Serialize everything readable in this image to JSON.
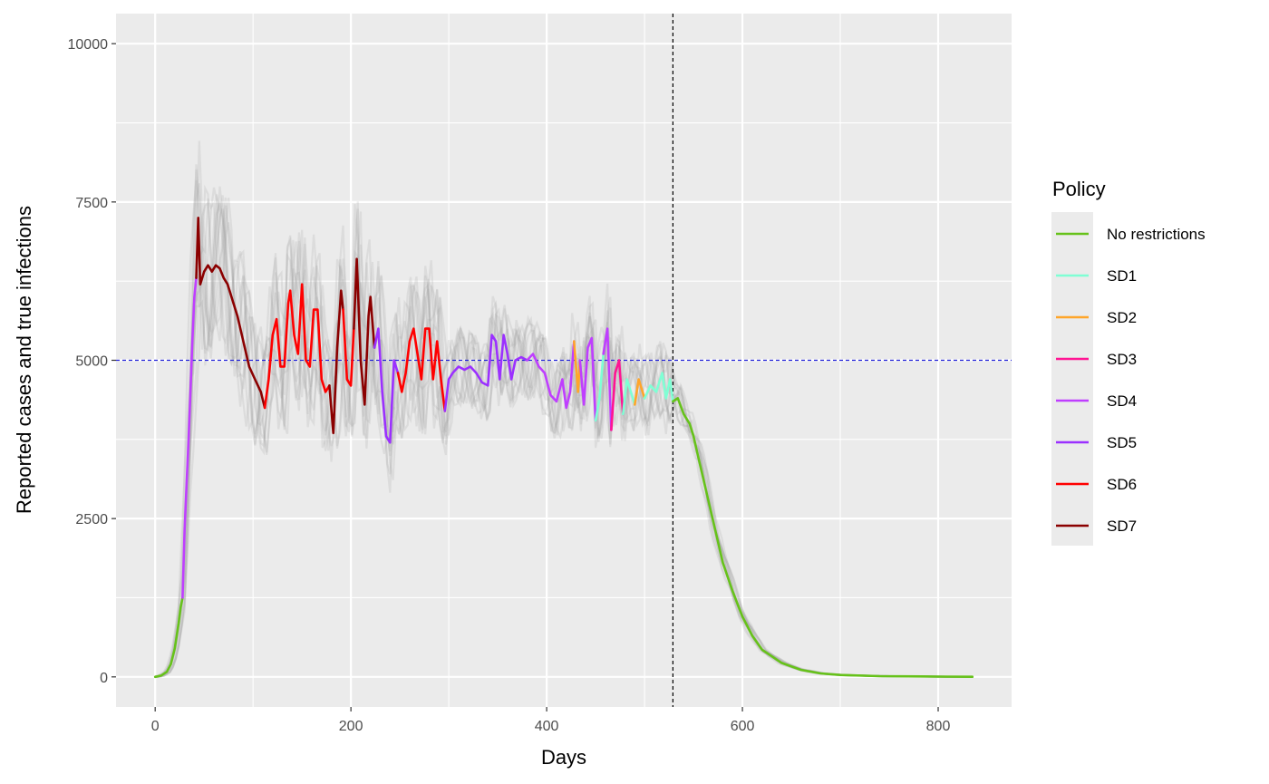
{
  "chart_data": {
    "type": "line",
    "xlabel": "Days",
    "ylabel": "Reported cases and true infections",
    "xlim": [
      -40,
      875
    ],
    "ylim": [
      -475,
      10475
    ],
    "x_ticks": [
      0,
      200,
      400,
      600,
      800
    ],
    "y_ticks": [
      0,
      2500,
      5000,
      7500,
      10000
    ],
    "grid": true,
    "legend": {
      "title": "Policy",
      "position": "right"
    },
    "reference_lines": [
      {
        "orientation": "horizontal",
        "value": 5000,
        "color": "#1f1fd6",
        "style": "dashed"
      },
      {
        "orientation": "vertical",
        "value": 529,
        "color": "#000000",
        "style": "dashed"
      }
    ],
    "series": [
      {
        "name": "No restrictions",
        "color": "#66c21a"
      },
      {
        "name": "SD1",
        "color": "#7fffd4"
      },
      {
        "name": "SD2",
        "color": "#ffa52a"
      },
      {
        "name": "SD3",
        "color": "#ff1493"
      },
      {
        "name": "SD4",
        "color": "#bf3eff"
      },
      {
        "name": "SD5",
        "color": "#9b30ff"
      },
      {
        "name": "SD6",
        "color": "#ff0000"
      },
      {
        "name": "SD7",
        "color": "#8b0000"
      }
    ],
    "segments": [
      {
        "policy": "No restrictions",
        "points": [
          [
            0,
            0
          ],
          [
            6,
            20
          ],
          [
            12,
            80
          ],
          [
            16,
            200
          ],
          [
            20,
            450
          ],
          [
            24,
            850
          ],
          [
            26,
            1100
          ],
          [
            28,
            1250
          ]
        ]
      },
      {
        "policy": "SD4",
        "points": [
          [
            28,
            1250
          ],
          [
            30,
            2300
          ],
          [
            32,
            3000
          ],
          [
            34,
            3700
          ],
          [
            36,
            4500
          ],
          [
            38,
            5300
          ],
          [
            40,
            6000
          ],
          [
            42,
            6300
          ]
        ]
      },
      {
        "policy": "SD7",
        "points": [
          [
            42,
            6300
          ],
          [
            44,
            7250
          ],
          [
            46,
            6200
          ],
          [
            50,
            6400
          ],
          [
            54,
            6500
          ],
          [
            58,
            6400
          ],
          [
            62,
            6500
          ],
          [
            66,
            6450
          ],
          [
            70,
            6300
          ],
          [
            74,
            6200
          ],
          [
            78,
            6000
          ],
          [
            84,
            5700
          ],
          [
            90,
            5300
          ],
          [
            96,
            4900
          ],
          [
            102,
            4700
          ],
          [
            108,
            4500
          ],
          [
            112,
            4250
          ]
        ]
      },
      {
        "policy": "SD6",
        "points": [
          [
            112,
            4250
          ],
          [
            116,
            4700
          ],
          [
            120,
            5400
          ],
          [
            124,
            5650
          ],
          [
            128,
            4900
          ],
          [
            132,
            4900
          ],
          [
            136,
            5900
          ],
          [
            138,
            6100
          ],
          [
            142,
            5400
          ],
          [
            146,
            5100
          ],
          [
            150,
            6200
          ],
          [
            154,
            5000
          ],
          [
            158,
            4900
          ],
          [
            162,
            5800
          ],
          [
            166,
            5800
          ],
          [
            170,
            4700
          ],
          [
            174,
            4500
          ],
          [
            178,
            4600
          ]
        ]
      },
      {
        "policy": "SD7",
        "points": [
          [
            178,
            4600
          ],
          [
            182,
            3850
          ],
          [
            186,
            5200
          ],
          [
            190,
            6100
          ],
          [
            192,
            5800
          ]
        ]
      },
      {
        "policy": "SD6",
        "points": [
          [
            192,
            5800
          ],
          [
            196,
            4700
          ],
          [
            200,
            4600
          ],
          [
            203,
            5500
          ]
        ]
      },
      {
        "policy": "SD7",
        "points": [
          [
            203,
            5500
          ],
          [
            206,
            6600
          ],
          [
            210,
            5000
          ],
          [
            214,
            4300
          ],
          [
            218,
            5700
          ],
          [
            220,
            6000
          ],
          [
            224,
            5200
          ]
        ]
      },
      {
        "policy": "SD5",
        "points": [
          [
            224,
            5200
          ],
          [
            228,
            5500
          ],
          [
            232,
            4500
          ],
          [
            236,
            3800
          ],
          [
            240,
            3700
          ],
          [
            244,
            5000
          ],
          [
            248,
            4800
          ]
        ]
      },
      {
        "policy": "SD6",
        "points": [
          [
            248,
            4800
          ],
          [
            252,
            4500
          ],
          [
            256,
            4800
          ],
          [
            260,
            5300
          ],
          [
            264,
            5500
          ],
          [
            268,
            5100
          ],
          [
            272,
            4700
          ],
          [
            276,
            5500
          ],
          [
            280,
            5500
          ],
          [
            284,
            4700
          ],
          [
            288,
            5300
          ],
          [
            292,
            4700
          ],
          [
            296,
            4200
          ]
        ]
      },
      {
        "policy": "SD5",
        "points": [
          [
            296,
            4200
          ],
          [
            300,
            4700
          ],
          [
            304,
            4800
          ],
          [
            310,
            4900
          ],
          [
            316,
            4850
          ],
          [
            322,
            4900
          ],
          [
            328,
            4800
          ],
          [
            334,
            4650
          ],
          [
            340,
            4600
          ],
          [
            344,
            5400
          ],
          [
            348,
            5300
          ],
          [
            352,
            4700
          ],
          [
            356,
            5400
          ],
          [
            360,
            5100
          ],
          [
            364,
            4700
          ],
          [
            368,
            5000
          ],
          [
            374,
            5050
          ],
          [
            380,
            5000
          ]
        ]
      },
      {
        "policy": "SD4",
        "points": [
          [
            380,
            5000
          ],
          [
            386,
            5100
          ],
          [
            392,
            4900
          ],
          [
            398,
            4800
          ],
          [
            404,
            4450
          ],
          [
            410,
            4350
          ],
          [
            416,
            4700
          ],
          [
            420,
            4250
          ],
          [
            424,
            4500
          ],
          [
            428,
            5300
          ]
        ]
      },
      {
        "policy": "SD2",
        "points": [
          [
            428,
            5300
          ],
          [
            432,
            4500
          ],
          [
            434,
            5000
          ]
        ]
      },
      {
        "policy": "SD4",
        "points": [
          [
            434,
            5000
          ],
          [
            438,
            4300
          ],
          [
            442,
            5200
          ],
          [
            446,
            5350
          ],
          [
            450,
            4050
          ]
        ]
      },
      {
        "policy": "SD1",
        "points": [
          [
            450,
            4050
          ],
          [
            454,
            4400
          ],
          [
            458,
            5100
          ]
        ]
      },
      {
        "policy": "SD4",
        "points": [
          [
            458,
            5100
          ],
          [
            462,
            5500
          ],
          [
            466,
            3900
          ]
        ]
      },
      {
        "policy": "SD3",
        "points": [
          [
            466,
            3900
          ],
          [
            470,
            4800
          ],
          [
            474,
            5000
          ],
          [
            478,
            4150
          ]
        ]
      },
      {
        "policy": "SD1",
        "points": [
          [
            478,
            4150
          ],
          [
            482,
            4700
          ],
          [
            486,
            4500
          ],
          [
            490,
            4300
          ]
        ]
      },
      {
        "policy": "SD2",
        "points": [
          [
            490,
            4300
          ],
          [
            494,
            4700
          ],
          [
            500,
            4400
          ]
        ]
      },
      {
        "policy": "SD1",
        "points": [
          [
            500,
            4400
          ],
          [
            506,
            4600
          ],
          [
            512,
            4500
          ],
          [
            518,
            4800
          ],
          [
            522,
            4400
          ],
          [
            526,
            4700
          ],
          [
            529,
            4350
          ]
        ]
      },
      {
        "policy": "No restrictions",
        "points": [
          [
            529,
            4350
          ],
          [
            534,
            4400
          ],
          [
            540,
            4150
          ],
          [
            546,
            4000
          ],
          [
            550,
            3800
          ],
          [
            556,
            3400
          ],
          [
            562,
            3000
          ],
          [
            568,
            2600
          ],
          [
            574,
            2200
          ],
          [
            580,
            1800
          ],
          [
            590,
            1350
          ],
          [
            600,
            950
          ],
          [
            610,
            650
          ],
          [
            620,
            430
          ],
          [
            640,
            220
          ],
          [
            660,
            110
          ],
          [
            680,
            55
          ],
          [
            700,
            30
          ],
          [
            740,
            12
          ],
          [
            800,
            4
          ],
          [
            835,
            2
          ]
        ]
      }
    ]
  }
}
